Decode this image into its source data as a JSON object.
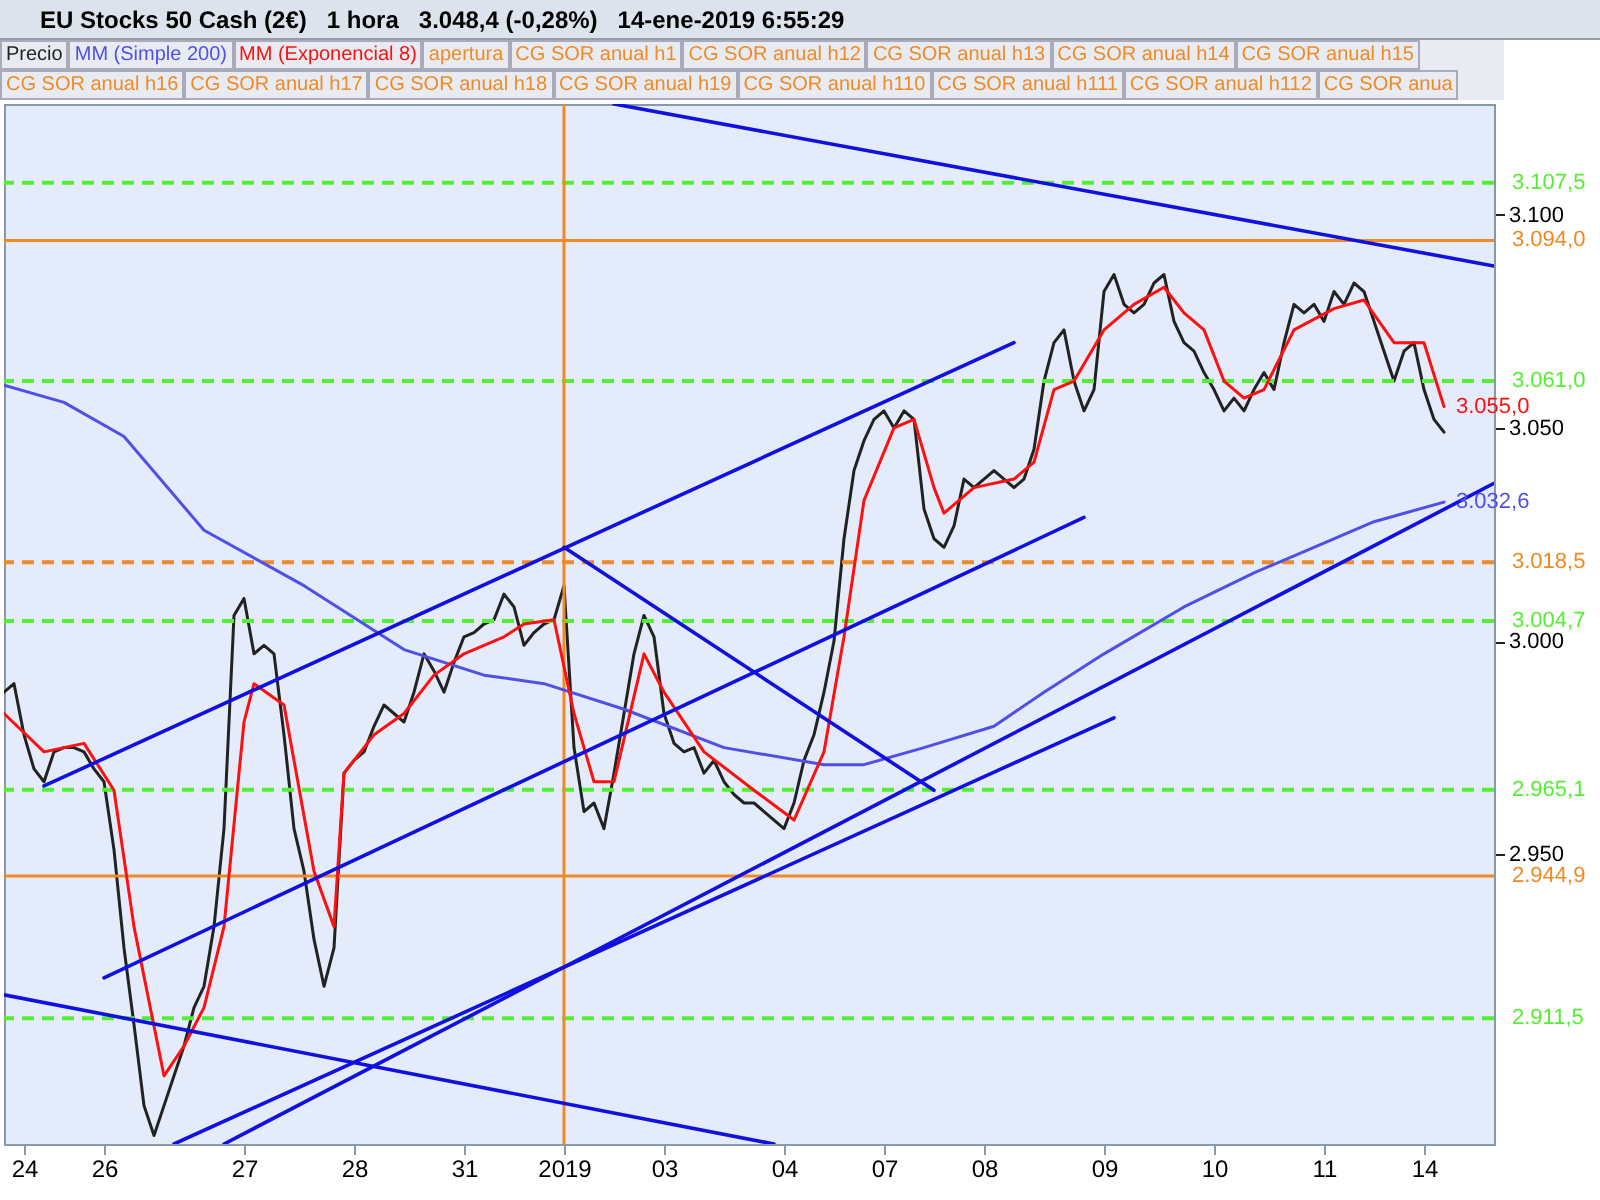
{
  "chart_data": {
    "type": "line",
    "title": "EU Stocks 50 Cash (2€)   1 hora   3.048,4 (-0,28%)   14-ene-2019 6:55:29",
    "legend": "top left",
    "grid": false,
    "marker": "none",
    "ylim": [
      2882,
      3126
    ],
    "yticks": [
      {
        "value": 2950,
        "label": "2.950"
      },
      {
        "value": 3000,
        "label": "3.000"
      },
      {
        "value": 3050,
        "label": "3.050"
      },
      {
        "value": 3100,
        "label": "3.100"
      }
    ],
    "categories": [
      null,
      null,
      "24",
      null,
      null,
      null,
      null,
      null,
      null,
      null,
      "26",
      null,
      null,
      null,
      null,
      null,
      null,
      null,
      null,
      null,
      null,
      null,
      null,
      null,
      "27",
      null,
      null,
      null,
      null,
      null,
      null,
      null,
      null,
      null,
      null,
      "28",
      null,
      null,
      null,
      null,
      null,
      null,
      null,
      null,
      null,
      null,
      "31",
      null,
      null,
      null,
      null,
      null,
      null,
      null,
      null,
      null,
      "2019",
      null,
      null,
      null,
      null,
      null,
      null,
      null,
      null,
      null,
      "03",
      null,
      null,
      null,
      null,
      null,
      null,
      null,
      null,
      null,
      null,
      null,
      "04",
      null,
      null,
      null,
      null,
      null,
      null,
      null,
      null,
      null,
      "07",
      null,
      null,
      null,
      null,
      null,
      null,
      null,
      null,
      null,
      "08",
      null,
      null,
      null,
      null,
      null,
      null,
      null,
      null,
      null,
      null,
      null,
      "09",
      null,
      null,
      null,
      null,
      null,
      null,
      null,
      null,
      null,
      null,
      "10",
      null,
      null,
      null,
      null,
      null,
      null,
      null,
      null,
      null,
      null,
      "11",
      null,
      null,
      null,
      null,
      null,
      null,
      null,
      null,
      null,
      "14",
      null,
      null,
      null,
      null,
      null,
      null,
      null
    ],
    "series": [
      {
        "name": "Precio",
        "color": "#222222",
        "values": [
          2988,
          2990,
          2978,
          2970,
          2967,
          2974,
          2975,
          2975,
          2974,
          2970,
          2967,
          2951,
          2928,
          2910,
          2891,
          2884,
          2891,
          2898,
          2905,
          2914,
          2919,
          2933,
          2956,
          3006,
          3010,
          2997,
          2999,
          2997,
          2978,
          2956,
          2946,
          2930,
          2919,
          2928,
          2969,
          2972,
          2974,
          2980,
          2985,
          2983,
          2981,
          2988,
          2997,
          2993,
          2988,
          2995,
          3001,
          3002,
          3004,
          3005,
          3011,
          3008,
          2999,
          3002,
          3004,
          3005,
          3013,
          2975,
          2960,
          2962,
          2956,
          2969,
          2983,
          2997,
          3006,
          3001,
          2983,
          2976,
          2974,
          2975,
          2969,
          2972,
          2967,
          2964,
          2962,
          2962,
          2960,
          2958,
          2956,
          2962,
          2972,
          2978,
          2988,
          3000,
          3024,
          3040,
          3047,
          3052,
          3054,
          3050,
          3054,
          3052,
          3031,
          3024,
          3022,
          3027,
          3038,
          3036,
          3038,
          3040,
          3038,
          3036,
          3038,
          3045,
          3061,
          3070,
          3073,
          3061,
          3054,
          3059,
          3082,
          3086,
          3079,
          3077,
          3079,
          3084,
          3086,
          3075,
          3070,
          3068,
          3063,
          3059,
          3054,
          3057,
          3054,
          3059,
          3063,
          3059,
          3070,
          3079,
          3077,
          3079,
          3075,
          3082,
          3079,
          3084,
          3082,
          3075,
          3068,
          3061,
          3068,
          3070,
          3059,
          3052,
          3049,
          null,
          null,
          null,
          null,
          null
        ]
      },
      {
        "name": "MM (Simple 200)",
        "color": "#5050e8",
        "values": [
          3060,
          null,
          null,
          null,
          null,
          null,
          3056,
          null,
          null,
          null,
          null,
          null,
          3048,
          null,
          null,
          null,
          null,
          null,
          null,
          null,
          3026,
          null,
          null,
          null,
          null,
          null,
          null,
          null,
          null,
          null,
          3013,
          null,
          null,
          null,
          null,
          null,
          null,
          null,
          null,
          null,
          2998,
          null,
          null,
          null,
          null,
          null,
          null,
          null,
          2992,
          null,
          null,
          null,
          null,
          null,
          2990,
          null,
          null,
          null,
          null,
          null,
          null,
          null,
          2984,
          null,
          null,
          null,
          null,
          null,
          null,
          null,
          null,
          null,
          2975,
          null,
          null,
          null,
          null,
          null,
          null,
          null,
          null,
          null,
          2971,
          null,
          null,
          null,
          2971,
          null,
          null,
          null,
          null,
          null,
          2975,
          null,
          null,
          null,
          null,
          null,
          null,
          2980,
          null,
          null,
          null,
          null,
          2988,
          null,
          null,
          null,
          null,
          null,
          2997,
          null,
          null,
          null,
          null,
          null,
          null,
          null,
          3008,
          null,
          null,
          null,
          null,
          null,
          null,
          3016,
          null,
          null,
          null,
          null,
          3021,
          null,
          null,
          null,
          null,
          null,
          null,
          3028,
          null,
          null,
          null,
          null,
          null,
          null,
          3032.6,
          null,
          null,
          null,
          null,
          null
        ],
        "value_labels": [
          null,
          null,
          null,
          null,
          null,
          null,
          null,
          null,
          null,
          null,
          null,
          null,
          null,
          null,
          null,
          null,
          null,
          null,
          null,
          null,
          null,
          null,
          null,
          null,
          null,
          null,
          null,
          null,
          null,
          null,
          null,
          null,
          null,
          null,
          null,
          null,
          null,
          null,
          null,
          null,
          null,
          null,
          null,
          null,
          null,
          null,
          null,
          null,
          null,
          null,
          null,
          null,
          null,
          null,
          null,
          null,
          null,
          null,
          null,
          null,
          null,
          null,
          null,
          null,
          null,
          null,
          null,
          null,
          null,
          null,
          null,
          null,
          null,
          null,
          null,
          null,
          null,
          null,
          null,
          null,
          null,
          null,
          null,
          null,
          null,
          null,
          null,
          null,
          null,
          null,
          null,
          null,
          null,
          null,
          null,
          null,
          null,
          null,
          null,
          null,
          null,
          null,
          null,
          null,
          null,
          null,
          null,
          null,
          null,
          null,
          null,
          null,
          null,
          null,
          null,
          null,
          null,
          null,
          null,
          null,
          null,
          null,
          null,
          null,
          null,
          null,
          null,
          null,
          null,
          null,
          null,
          null,
          null,
          null,
          null,
          null,
          null,
          null,
          null,
          null,
          null,
          null,
          null,
          null,
          "3.032,6",
          null,
          null,
          null,
          null,
          null
        ]
      },
      {
        "name": "MM (Exponencial 8)",
        "color": "#ff1010",
        "values": [
          2983,
          null,
          null,
          null,
          2974,
          null,
          null,
          null,
          2976,
          null,
          null,
          2965,
          null,
          2933,
          null,
          null,
          2898,
          null,
          2905,
          null,
          2914,
          null,
          2933,
          null,
          2981,
          2990,
          null,
          null,
          2985,
          null,
          null,
          2946,
          null,
          2933,
          2969,
          null,
          null,
          2978,
          null,
          null,
          2983,
          null,
          null,
          2992,
          null,
          null,
          2997,
          null,
          null,
          null,
          3001,
          null,
          3004,
          null,
          null,
          3005,
          null,
          2983,
          null,
          2967,
          null,
          2967,
          null,
          null,
          2997,
          null,
          2988,
          null,
          null,
          null,
          2974,
          null,
          null,
          null,
          null,
          2965,
          null,
          null,
          null,
          2958,
          null,
          null,
          2974,
          null,
          3001,
          null,
          3033,
          null,
          null,
          3050,
          null,
          3052,
          null,
          3036,
          3030,
          null,
          null,
          3036,
          null,
          null,
          null,
          3038,
          null,
          3042,
          null,
          3059,
          null,
          3061,
          null,
          null,
          3073,
          null,
          null,
          3079,
          null,
          null,
          3083,
          null,
          3077,
          null,
          3073,
          null,
          3061,
          null,
          3057,
          null,
          3059,
          null,
          null,
          3073,
          null,
          null,
          null,
          3078,
          null,
          null,
          3080,
          null,
          null,
          3070,
          null,
          null,
          3070,
          null,
          3055,
          null,
          null,
          null,
          null,
          null
        ],
        "value_labels": [
          null,
          null,
          null,
          null,
          null,
          null,
          null,
          null,
          null,
          null,
          null,
          null,
          null,
          null,
          null,
          null,
          null,
          null,
          null,
          null,
          null,
          null,
          null,
          null,
          null,
          null,
          null,
          null,
          null,
          null,
          null,
          null,
          null,
          null,
          null,
          null,
          null,
          null,
          null,
          null,
          null,
          null,
          null,
          null,
          null,
          null,
          null,
          null,
          null,
          null,
          null,
          null,
          null,
          null,
          null,
          null,
          null,
          null,
          null,
          null,
          null,
          null,
          null,
          null,
          null,
          null,
          null,
          null,
          null,
          null,
          null,
          null,
          null,
          null,
          null,
          null,
          null,
          null,
          null,
          null,
          null,
          null,
          null,
          null,
          null,
          null,
          null,
          null,
          null,
          null,
          null,
          null,
          null,
          null,
          null,
          null,
          null,
          null,
          null,
          null,
          null,
          null,
          null,
          null,
          null,
          null,
          null,
          null,
          null,
          null,
          null,
          null,
          null,
          null,
          null,
          null,
          null,
          null,
          null,
          null,
          null,
          null,
          null,
          null,
          null,
          null,
          null,
          null,
          null,
          null,
          null,
          null,
          null,
          null,
          null,
          null,
          null,
          null,
          null,
          null,
          null,
          null,
          null,
          null,
          "3.055,0",
          null,
          null,
          null,
          null,
          null
        ]
      },
      {
        "color": "#1010e0",
        "values": [
          null,
          null,
          null,
          null,
          null,
          null,
          null,
          null,
          null,
          null,
          null,
          null,
          null,
          null,
          null,
          null,
          null,
          null,
          null,
          null,
          null,
          null,
          null,
          null,
          null,
          null,
          null,
          null,
          null,
          null,
          null,
          null,
          null,
          null,
          null,
          null,
          null,
          null,
          null,
          null,
          null,
          null,
          null,
          null,
          null,
          null,
          null,
          null,
          null,
          null,
          null,
          null,
          null,
          null,
          null,
          null,
          null,
          null,
          null,
          null,
          null,
          3126,
          null,
          null,
          null,
          null,
          null,
          null,
          null,
          null,
          null,
          null,
          null,
          null,
          null,
          null,
          null,
          null,
          null,
          null,
          null,
          null,
          null,
          null,
          null,
          null,
          null,
          null,
          null,
          null,
          null,
          null,
          null,
          null,
          null,
          null,
          null,
          null,
          null,
          null,
          null,
          null,
          null,
          null,
          null,
          null,
          null,
          null,
          null,
          null,
          null,
          null,
          null,
          null,
          null,
          null,
          null,
          null,
          null,
          null,
          null,
          null,
          null,
          null,
          null,
          null,
          null,
          null,
          null,
          null,
          null,
          null,
          null,
          null,
          null,
          null,
          null,
          null,
          null,
          null,
          null,
          null,
          null,
          null,
          null,
          null,
          null,
          null,
          null,
          3088
        ]
      },
      {
        "color": "#1010e0",
        "values": [
          null,
          null,
          null,
          null,
          2966,
          null,
          null,
          null,
          null,
          null,
          null,
          null,
          null,
          null,
          null,
          null,
          null,
          null,
          null,
          null,
          null,
          null,
          null,
          null,
          null,
          null,
          null,
          null,
          null,
          null,
          null,
          null,
          null,
          null,
          null,
          null,
          null,
          null,
          null,
          null,
          null,
          null,
          null,
          null,
          null,
          null,
          null,
          null,
          null,
          null,
          null,
          null,
          null,
          null,
          null,
          null,
          null,
          null,
          null,
          null,
          null,
          null,
          null,
          null,
          null,
          null,
          null,
          null,
          null,
          null,
          null,
          null,
          null,
          null,
          null,
          null,
          null,
          null,
          null,
          null,
          null,
          null,
          null,
          null,
          null,
          null,
          null,
          null,
          null,
          null,
          null,
          null,
          null,
          null,
          null,
          null,
          null,
          null,
          null,
          null,
          null,
          3070,
          null,
          null,
          null,
          null,
          null,
          null,
          null,
          null,
          null,
          null,
          null,
          null,
          null,
          null,
          null,
          null,
          null,
          null,
          null,
          null,
          null,
          null,
          null,
          null,
          null,
          null,
          null,
          null,
          null,
          null,
          null,
          null,
          null,
          null,
          null,
          null,
          null,
          null,
          null,
          null,
          null,
          null,
          null,
          null,
          null,
          null,
          null,
          null
        ]
      },
      {
        "color": "#1010e0",
        "values": [
          null,
          null,
          null,
          null,
          null,
          null,
          null,
          null,
          null,
          null,
          2921,
          null,
          null,
          null,
          null,
          null,
          null,
          null,
          null,
          null,
          null,
          null,
          null,
          null,
          null,
          null,
          null,
          null,
          null,
          null,
          null,
          null,
          null,
          null,
          null,
          null,
          null,
          null,
          null,
          null,
          null,
          null,
          null,
          null,
          null,
          null,
          null,
          null,
          null,
          null,
          null,
          null,
          null,
          null,
          null,
          null,
          null,
          null,
          null,
          null,
          null,
          null,
          null,
          null,
          null,
          null,
          null,
          null,
          null,
          null,
          null,
          null,
          null,
          null,
          null,
          null,
          null,
          null,
          null,
          null,
          null,
          null,
          null,
          null,
          null,
          null,
          null,
          null,
          null,
          null,
          null,
          null,
          null,
          null,
          null,
          null,
          null,
          null,
          null,
          null,
          null,
          null,
          null,
          null,
          null,
          null,
          null,
          null,
          3029,
          null,
          null,
          null,
          null,
          null,
          null,
          null,
          null,
          null,
          null,
          null,
          null,
          null,
          null,
          null,
          null,
          null,
          null,
          null,
          null,
          null,
          null,
          null,
          null,
          null,
          null,
          null,
          null,
          null,
          null,
          null,
          null,
          null,
          null,
          null,
          null,
          null,
          null,
          null,
          null,
          null
        ]
      },
      {
        "color": "#1010e0",
        "values": [
          null,
          null,
          null,
          null,
          null,
          null,
          null,
          null,
          null,
          null,
          null,
          null,
          null,
          null,
          null,
          null,
          null,
          null,
          null,
          null,
          null,
          null,
          null,
          null,
          null,
          null,
          null,
          null,
          null,
          null,
          null,
          null,
          null,
          null,
          null,
          null,
          null,
          null,
          null,
          null,
          null,
          null,
          null,
          null,
          null,
          null,
          null,
          null,
          null,
          null,
          null,
          null,
          null,
          null,
          null,
          null,
          3022,
          null,
          null,
          null,
          null,
          null,
          null,
          null,
          null,
          null,
          null,
          null,
          null,
          null,
          null,
          null,
          null,
          null,
          null,
          null,
          null,
          null,
          null,
          null,
          null,
          null,
          null,
          null,
          null,
          null,
          null,
          null,
          null,
          null,
          null,
          null,
          null,
          2965,
          null,
          null,
          null,
          null,
          null,
          null,
          null,
          null,
          null,
          null,
          null,
          null,
          null,
          null,
          null,
          null,
          null,
          null,
          null,
          null,
          null,
          null,
          null,
          null,
          null,
          null,
          null,
          null,
          null,
          null,
          null,
          null,
          null,
          null,
          null,
          null,
          null,
          null,
          null,
          null,
          null,
          null,
          null,
          null,
          null,
          null,
          null,
          null,
          null,
          null,
          null,
          null,
          null,
          null,
          null,
          null
        ]
      },
      {
        "color": "#1010e0",
        "values": [
          null,
          null,
          null,
          null,
          null,
          null,
          null,
          null,
          null,
          null,
          null,
          null,
          null,
          null,
          null,
          null,
          null,
          2882,
          null,
          null,
          null,
          null,
          null,
          null,
          null,
          null,
          null,
          null,
          null,
          null,
          null,
          null,
          null,
          null,
          null,
          null,
          null,
          null,
          null,
          null,
          null,
          null,
          null,
          null,
          null,
          null,
          null,
          null,
          null,
          null,
          null,
          null,
          null,
          null,
          null,
          null,
          null,
          null,
          null,
          null,
          null,
          null,
          null,
          null,
          null,
          null,
          null,
          null,
          null,
          null,
          null,
          null,
          null,
          null,
          null,
          null,
          null,
          null,
          null,
          null,
          null,
          null,
          null,
          null,
          null,
          null,
          null,
          null,
          null,
          null,
          null,
          null,
          null,
          null,
          null,
          null,
          null,
          null,
          null,
          null,
          null,
          null,
          null,
          null,
          null,
          null,
          null,
          null,
          null,
          null,
          null,
          2982,
          null,
          null,
          null,
          null,
          null,
          null,
          null,
          null,
          null,
          null,
          null,
          null,
          null,
          null,
          null,
          null,
          null,
          null,
          null,
          null,
          null,
          null,
          null,
          null,
          null,
          null,
          null,
          null,
          null,
          null,
          null,
          null,
          null,
          null,
          null,
          null,
          null,
          null
        ]
      },
      {
        "color": "#1010e0",
        "values": [
          null,
          null,
          null,
          null,
          null,
          null,
          null,
          null,
          null,
          null,
          null,
          null,
          null,
          null,
          null,
          null,
          null,
          null,
          null,
          null,
          null,
          null,
          2882,
          null,
          null,
          null,
          null,
          null,
          null,
          null,
          null,
          null,
          null,
          null,
          null,
          null,
          null,
          null,
          null,
          null,
          null,
          null,
          null,
          null,
          null,
          null,
          null,
          null,
          null,
          null,
          null,
          null,
          null,
          null,
          null,
          null,
          null,
          null,
          null,
          null,
          null,
          null,
          null,
          null,
          null,
          null,
          null,
          null,
          null,
          null,
          null,
          null,
          null,
          null,
          null,
          null,
          null,
          null,
          null,
          null,
          null,
          null,
          null,
          null,
          null,
          null,
          null,
          null,
          null,
          null,
          null,
          null,
          null,
          null,
          null,
          null,
          null,
          null,
          null,
          null,
          null,
          null,
          null,
          null,
          null,
          null,
          null,
          null,
          null,
          null,
          null,
          null,
          null,
          null,
          null,
          null,
          null,
          null,
          null,
          null,
          null,
          null,
          null,
          null,
          null,
          null,
          null,
          null,
          null,
          null,
          null,
          null,
          null,
          null,
          null,
          null,
          null,
          null,
          null,
          null,
          null,
          null,
          null,
          null,
          null,
          null,
          null,
          null,
          null,
          3037
        ]
      },
      {
        "color": "#1010e0",
        "values": [
          2917,
          null,
          null,
          null,
          null,
          null,
          null,
          null,
          null,
          null,
          null,
          null,
          null,
          null,
          null,
          null,
          null,
          null,
          null,
          null,
          null,
          null,
          null,
          null,
          null,
          null,
          null,
          null,
          null,
          null,
          null,
          null,
          null,
          null,
          null,
          null,
          null,
          null,
          null,
          null,
          null,
          null,
          null,
          null,
          null,
          null,
          null,
          null,
          null,
          null,
          null,
          null,
          null,
          null,
          null,
          null,
          null,
          null,
          null,
          null,
          null,
          null,
          null,
          null,
          null,
          null,
          null,
          null,
          null,
          null,
          null,
          null,
          null,
          null,
          null,
          null,
          null,
          2882,
          null,
          null,
          null,
          null,
          null,
          null,
          null,
          null,
          null,
          null,
          null,
          null,
          null,
          null,
          null,
          null,
          null,
          null,
          null,
          null,
          null,
          null,
          null,
          null,
          null,
          null,
          null,
          null,
          null,
          null,
          null,
          null,
          null,
          null,
          null,
          null,
          null,
          null,
          null,
          null,
          null,
          null,
          null,
          null,
          null,
          null,
          null,
          null,
          null,
          null,
          null,
          null,
          null,
          null,
          null,
          null,
          null,
          null,
          null,
          null,
          null,
          null,
          null,
          null,
          null,
          null,
          null,
          null,
          null,
          null,
          null,
          null
        ]
      }
    ],
    "ref_lines": [
      {
        "axis": "y",
        "value": 3107.5,
        "label": "3.107,5",
        "color": "#55ee33",
        "line_style": "dashed"
      },
      {
        "axis": "y",
        "value": 3094.0,
        "label": "3.094,0",
        "color": "#f08a24",
        "line_style": "solid"
      },
      {
        "axis": "y",
        "value": 3061.0,
        "label": "3.061,0",
        "color": "#55ee33",
        "line_style": "dashed"
      },
      {
        "axis": "y",
        "value": 3018.5,
        "label": "3.018,5",
        "color": "#f08a24",
        "line_style": "dashed"
      },
      {
        "axis": "y",
        "value": 3004.7,
        "label": "3.004,7",
        "color": "#55ee33",
        "line_style": "dashed"
      },
      {
        "axis": "y",
        "value": 2965.1,
        "label": "2.965,1",
        "color": "#55ee33",
        "line_style": "dashed"
      },
      {
        "axis": "y",
        "value": 2944.9,
        "label": "2.944,9",
        "color": "#f08a24",
        "line_style": "solid"
      },
      {
        "axis": "y",
        "value": 2911.5,
        "label": "2.911,5",
        "color": "#55ee33",
        "line_style": "dashed"
      },
      {
        "axis": "x",
        "value": "2019",
        "color": "#f08a24",
        "line_style": "solid"
      }
    ],
    "annotations": [
      "apertura",
      "CG SOR anual h1",
      "CG SOR anual h12",
      "CG SOR anual h13",
      "CG SOR anual h14",
      "CG SOR anual h15",
      "CG SOR anual h16",
      "CG SOR anual h17",
      "CG SOR anual h18",
      "CG SOR anual h19",
      "CG SOR anual h110",
      "CG SOR anual h111",
      "CG SOR anual h112",
      "CG SOR anua"
    ]
  }
}
